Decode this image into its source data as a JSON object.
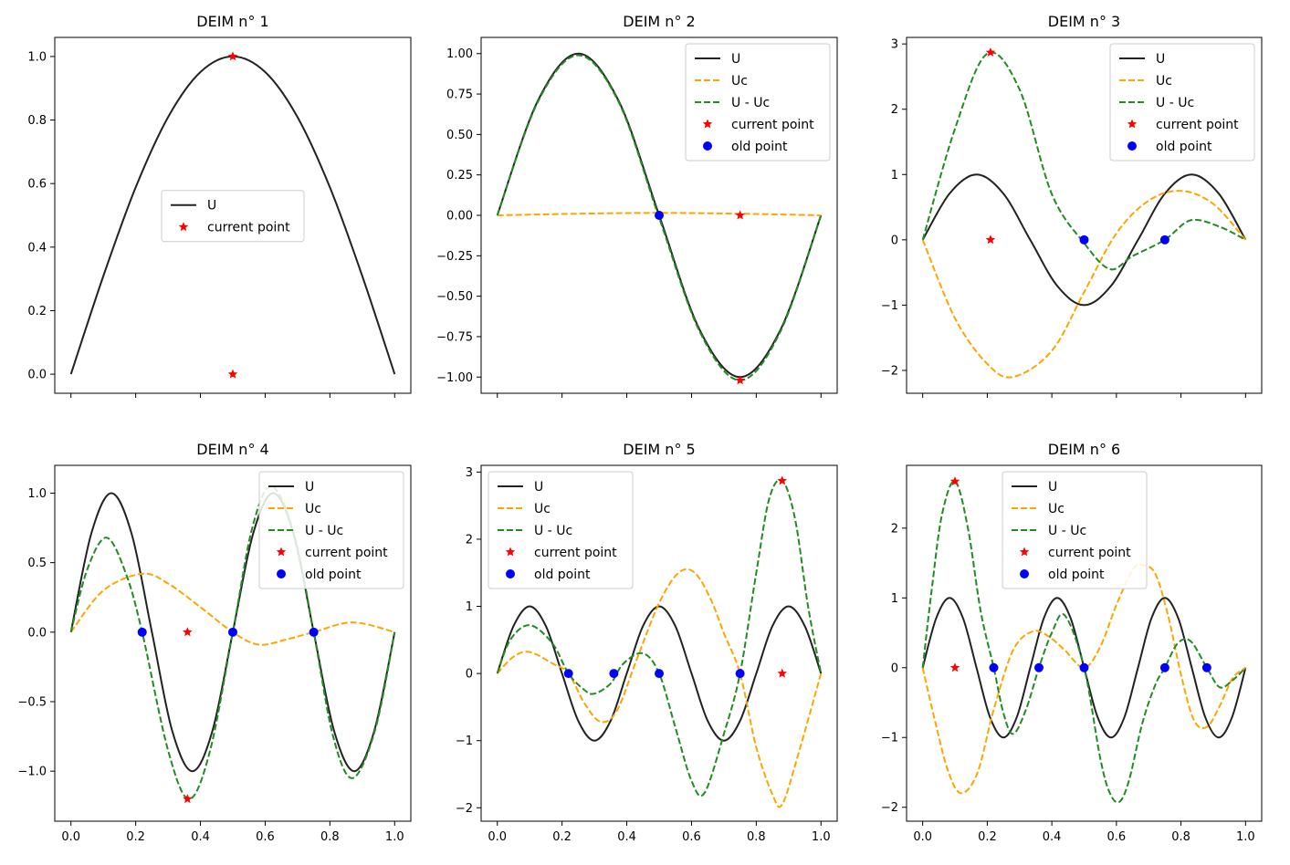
{
  "colors": {
    "U": "#222222",
    "Uc": "#ffa500",
    "diff": "#228b22",
    "current": "#ff0000",
    "old": "#0000ff",
    "axes": "#000000",
    "background": "#ffffff"
  },
  "chart_data": [
    {
      "type": "line",
      "title": "DEIM n° 1",
      "k": 1,
      "xlim": [
        -0.05,
        1.05
      ],
      "ylim": [
        -0.06,
        1.06
      ],
      "xticks": [
        0,
        0.2,
        0.4,
        0.6,
        0.8,
        1.0
      ],
      "xticklabels": [
        "",
        "",
        "",
        "",
        "",
        ""
      ],
      "yticks": [
        0,
        0.2,
        0.4,
        0.6,
        0.8,
        1.0
      ],
      "yticklabels": [
        "0.0",
        "0.2",
        "0.4",
        "0.6",
        "0.8",
        "1.0"
      ],
      "legend": {
        "entries": [
          "U",
          "current point"
        ],
        "placement": "center"
      },
      "series": [
        {
          "name": "U",
          "style": "solid",
          "x": [
            0,
            0.1,
            0.2,
            0.3,
            0.4,
            0.5,
            0.6,
            0.7,
            0.8,
            0.9,
            1.0
          ],
          "y": [
            0,
            0.309,
            0.588,
            0.809,
            0.951,
            1.0,
            0.951,
            0.809,
            0.588,
            0.309,
            0
          ]
        }
      ],
      "current_point": [
        [
          0.5,
          1.0
        ],
        [
          0.5,
          0.0
        ]
      ],
      "old_points": []
    },
    {
      "type": "line",
      "title": "DEIM n° 2",
      "k": 2,
      "xlim": [
        -0.05,
        1.05
      ],
      "ylim": [
        -1.1,
        1.1
      ],
      "xticks": [
        0,
        0.2,
        0.4,
        0.6,
        0.8,
        1.0
      ],
      "xticklabels": [
        "",
        "",
        "",
        "",
        "",
        ""
      ],
      "yticks": [
        -1.0,
        -0.75,
        -0.5,
        -0.25,
        0,
        0.25,
        0.5,
        0.75,
        1.0
      ],
      "yticklabels": [
        "−1.00",
        "−0.75",
        "−0.50",
        "−0.25",
        "0.00",
        "0.25",
        "0.50",
        "0.75",
        "1.00"
      ],
      "legend": {
        "entries": [
          "U",
          "Uc",
          "U - Uc",
          "current point",
          "old point"
        ],
        "placement": "upper right"
      },
      "series": [
        {
          "name": "U",
          "style": "solid",
          "x": [
            0,
            0.125,
            0.25,
            0.375,
            0.5,
            0.625,
            0.75,
            0.875,
            1.0
          ],
          "y": [
            0,
            0.707,
            1.0,
            0.707,
            0,
            -0.707,
            -1.0,
            -0.707,
            0
          ]
        },
        {
          "name": "Uc",
          "style": "dashed",
          "x": [
            0,
            0.25,
            0.5,
            0.75,
            1.0
          ],
          "y": [
            0,
            0.01,
            0.015,
            0.01,
            0
          ]
        },
        {
          "name": "U - Uc",
          "style": "dashed",
          "x": [
            0,
            0.125,
            0.25,
            0.375,
            0.5,
            0.625,
            0.75,
            0.875,
            1.0
          ],
          "y": [
            0,
            0.7,
            0.99,
            0.7,
            -0.015,
            -0.717,
            -1.02,
            -0.716,
            0
          ]
        }
      ],
      "current_point": [
        [
          0.75,
          -1.02
        ],
        [
          0.75,
          0.0
        ]
      ],
      "old_points": [
        [
          0.5,
          0.0
        ]
      ]
    },
    {
      "type": "line",
      "title": "DEIM n° 3",
      "k": 3,
      "xlim": [
        -0.05,
        1.05
      ],
      "ylim": [
        -2.35,
        3.1
      ],
      "xticks": [
        0,
        0.2,
        0.4,
        0.6,
        0.8,
        1.0
      ],
      "xticklabels": [
        "",
        "",
        "",
        "",
        "",
        ""
      ],
      "yticks": [
        -2,
        -1,
        0,
        1,
        2,
        3
      ],
      "yticklabels": [
        "−2",
        "−1",
        "0",
        "1",
        "2",
        "3"
      ],
      "legend": {
        "entries": [
          "U",
          "Uc",
          "U - Uc",
          "current point",
          "old point"
        ],
        "placement": "upper right"
      },
      "series": [
        {
          "name": "U",
          "style": "solid",
          "x": [
            0,
            0.083,
            0.167,
            0.25,
            0.333,
            0.417,
            0.5,
            0.583,
            0.667,
            0.75,
            0.833,
            0.917,
            1.0
          ],
          "y": [
            0,
            0.707,
            1.0,
            0.707,
            0,
            -0.707,
            -1.0,
            -0.707,
            0,
            0.707,
            1.0,
            0.707,
            0
          ]
        },
        {
          "name": "Uc",
          "style": "dashed",
          "x": [
            0,
            0.1,
            0.2,
            0.28,
            0.4,
            0.5,
            0.6,
            0.7,
            0.8,
            0.9,
            1.0
          ],
          "y": [
            0,
            -1.2,
            -1.9,
            -2.1,
            -1.7,
            -0.8,
            0.1,
            0.6,
            0.75,
            0.55,
            0
          ]
        },
        {
          "name": "U - Uc",
          "style": "dashed",
          "x": [
            0,
            0.1,
            0.2,
            0.3,
            0.4,
            0.5,
            0.58,
            0.65,
            0.75,
            0.83,
            0.92,
            1.0
          ],
          "y": [
            0,
            1.7,
            2.85,
            2.3,
            0.7,
            -0.05,
            -0.45,
            -0.25,
            0.0,
            0.3,
            0.2,
            0
          ]
        }
      ],
      "current_point": [
        [
          0.21,
          2.87
        ],
        [
          0.21,
          0.0
        ]
      ],
      "old_points": [
        [
          0.5,
          0.0
        ],
        [
          0.75,
          0.0
        ]
      ]
    },
    {
      "type": "line",
      "title": "DEIM n° 4",
      "k": 4,
      "xlim": [
        -0.05,
        1.05
      ],
      "ylim": [
        -1.36,
        1.2
      ],
      "xticks": [
        0,
        0.2,
        0.4,
        0.6,
        0.8,
        1.0
      ],
      "xticklabels": [
        "0.0",
        "0.2",
        "0.4",
        "0.6",
        "0.8",
        "1.0"
      ],
      "yticks": [
        -1.0,
        -0.5,
        0,
        0.5,
        1.0
      ],
      "yticklabels": [
        "−1.0",
        "−0.5",
        "0.0",
        "0.5",
        "1.0"
      ],
      "legend": {
        "entries": [
          "U",
          "Uc",
          "U - Uc",
          "current point",
          "old point"
        ],
        "placement": "upper right"
      },
      "series": [
        {
          "name": "U",
          "style": "solid",
          "x": [
            0,
            0.0625,
            0.125,
            0.1875,
            0.25,
            0.3125,
            0.375,
            0.4375,
            0.5,
            0.5625,
            0.625,
            0.6875,
            0.75,
            0.8125,
            0.875,
            0.9375,
            1.0
          ],
          "y": [
            0,
            0.707,
            1.0,
            0.707,
            0,
            -0.707,
            -1.0,
            -0.707,
            0,
            0.707,
            1.0,
            0.707,
            0,
            -0.707,
            -1.0,
            -0.707,
            0
          ]
        },
        {
          "name": "Uc",
          "style": "dashed",
          "x": [
            0,
            0.1,
            0.22,
            0.3,
            0.4,
            0.5,
            0.58,
            0.67,
            0.75,
            0.87,
            1.0
          ],
          "y": [
            0,
            0.3,
            0.42,
            0.35,
            0.18,
            0.0,
            -0.09,
            -0.05,
            0.0,
            0.07,
            0
          ]
        },
        {
          "name": "U - Uc",
          "style": "dashed",
          "x": [
            0,
            0.05,
            0.11,
            0.17,
            0.22,
            0.3,
            0.365,
            0.43,
            0.5,
            0.56,
            0.62,
            0.69,
            0.75,
            0.81,
            0.87,
            0.94,
            1.0
          ],
          "y": [
            0,
            0.45,
            0.68,
            0.42,
            0,
            -0.85,
            -1.2,
            -0.85,
            0,
            0.75,
            1.05,
            0.7,
            0,
            -0.75,
            -1.05,
            -0.7,
            0
          ]
        }
      ],
      "current_point": [
        [
          0.36,
          -1.2
        ],
        [
          0.36,
          0.0
        ]
      ],
      "old_points": [
        [
          0.22,
          0.0
        ],
        [
          0.5,
          0.0
        ],
        [
          0.75,
          0.0
        ]
      ]
    },
    {
      "type": "line",
      "title": "DEIM n° 5",
      "k": 5,
      "xlim": [
        -0.05,
        1.05
      ],
      "ylim": [
        -2.2,
        3.1
      ],
      "xticks": [
        0,
        0.2,
        0.4,
        0.6,
        0.8,
        1.0
      ],
      "xticklabels": [
        "0.0",
        "0.2",
        "0.4",
        "0.6",
        "0.8",
        "1.0"
      ],
      "yticks": [
        -2,
        -1,
        0,
        1,
        2,
        3
      ],
      "yticklabels": [
        "−2",
        "−1",
        "0",
        "1",
        "2",
        "3"
      ],
      "legend": {
        "entries": [
          "U",
          "Uc",
          "U - Uc",
          "current point",
          "old point"
        ],
        "placement": "upper left"
      },
      "series": [
        {
          "name": "U",
          "style": "solid",
          "x": [
            0,
            0.05,
            0.1,
            0.15,
            0.2,
            0.25,
            0.3,
            0.35,
            0.4,
            0.45,
            0.5,
            0.55,
            0.6,
            0.65,
            0.7,
            0.75,
            0.8,
            0.85,
            0.9,
            0.95,
            1.0
          ],
          "y": [
            0,
            0.707,
            1.0,
            0.707,
            0,
            -0.707,
            -1.0,
            -0.707,
            0,
            0.707,
            1.0,
            0.707,
            0,
            -0.707,
            -1.0,
            -0.707,
            0,
            0.707,
            1.0,
            0.707,
            0
          ]
        },
        {
          "name": "Uc",
          "style": "dashed",
          "x": [
            0,
            0.05,
            0.1,
            0.17,
            0.22,
            0.27,
            0.32,
            0.37,
            0.43,
            0.5,
            0.56,
            0.61,
            0.66,
            0.7,
            0.75,
            0.8,
            0.85,
            0.88,
            0.93,
            1.0
          ],
          "y": [
            0,
            0.25,
            0.32,
            0.15,
            0.0,
            -0.45,
            -0.72,
            -0.55,
            0.2,
            1.05,
            1.5,
            1.5,
            1.1,
            0.6,
            0.0,
            -1.1,
            -1.8,
            -1.95,
            -1.2,
            0
          ]
        },
        {
          "name": "U - Uc",
          "style": "dashed",
          "x": [
            0,
            0.04,
            0.1,
            0.17,
            0.22,
            0.27,
            0.3,
            0.35,
            0.39,
            0.45,
            0.5,
            0.55,
            0.6,
            0.64,
            0.7,
            0.75,
            0.8,
            0.84,
            0.88,
            0.92,
            0.96,
            1.0
          ],
          "y": [
            0,
            0.5,
            0.72,
            0.45,
            0.0,
            -0.25,
            -0.3,
            -0.15,
            0.15,
            0.3,
            0.0,
            -0.8,
            -1.6,
            -1.78,
            -0.9,
            0.0,
            1.5,
            2.6,
            2.87,
            2.3,
            1.0,
            0
          ]
        }
      ],
      "current_point": [
        [
          0.88,
          2.87
        ],
        [
          0.88,
          0.0
        ]
      ],
      "old_points": [
        [
          0.22,
          0.0
        ],
        [
          0.36,
          0.0
        ],
        [
          0.5,
          0.0
        ],
        [
          0.75,
          0.0
        ]
      ]
    },
    {
      "type": "line",
      "title": "DEIM n° 6",
      "k": 6,
      "xlim": [
        -0.05,
        1.05
      ],
      "ylim": [
        -2.2,
        2.9
      ],
      "xticks": [
        0,
        0.2,
        0.4,
        0.6,
        0.8,
        1.0
      ],
      "xticklabels": [
        "0.0",
        "0.2",
        "0.4",
        "0.6",
        "0.8",
        "1.0"
      ],
      "yticks": [
        -2,
        -1,
        0,
        1,
        2
      ],
      "yticklabels": [
        "−2",
        "−1",
        "0",
        "1",
        "2"
      ],
      "legend": {
        "entries": [
          "U",
          "Uc",
          "U - Uc",
          "current point",
          "old point"
        ],
        "placement": "upper center"
      },
      "series": [
        {
          "name": "U",
          "style": "solid",
          "x": [
            0,
            0.0417,
            0.0833,
            0.125,
            0.1667,
            0.2083,
            0.25,
            0.2917,
            0.3333,
            0.375,
            0.4167,
            0.4583,
            0.5,
            0.5417,
            0.5833,
            0.625,
            0.6667,
            0.7083,
            0.75,
            0.7917,
            0.8333,
            0.875,
            0.9167,
            0.9583,
            1.0
          ],
          "y": [
            0,
            0.707,
            1.0,
            0.707,
            0,
            -0.707,
            -1.0,
            -0.707,
            0,
            0.707,
            1.0,
            0.707,
            0,
            -0.707,
            -1.0,
            -0.707,
            0,
            0.707,
            1.0,
            0.707,
            0,
            -0.707,
            -1.0,
            -0.707,
            0
          ]
        },
        {
          "name": "Uc",
          "style": "dashed",
          "x": [
            0,
            0.04,
            0.08,
            0.12,
            0.17,
            0.22,
            0.28,
            0.34,
            0.39,
            0.44,
            0.5,
            0.55,
            0.6,
            0.65,
            0.68,
            0.72,
            0.76,
            0.8,
            0.84,
            0.88,
            0.92,
            0.96,
            1.0
          ],
          "y": [
            0,
            -0.8,
            -1.5,
            -1.8,
            -1.5,
            -0.6,
            0.25,
            0.52,
            0.45,
            0.25,
            0.0,
            0.3,
            0.9,
            1.4,
            1.47,
            1.35,
            0.75,
            -0.1,
            -0.75,
            -0.85,
            -0.55,
            -0.15,
            0
          ]
        },
        {
          "name": "U - Uc",
          "style": "dashed",
          "x": [
            0,
            0.03,
            0.06,
            0.1,
            0.14,
            0.18,
            0.22,
            0.25,
            0.28,
            0.32,
            0.36,
            0.4,
            0.44,
            0.5,
            0.55,
            0.58,
            0.61,
            0.64,
            0.68,
            0.72,
            0.75,
            0.79,
            0.83,
            0.88,
            0.92,
            0.96,
            1.0
          ],
          "y": [
            0,
            1.2,
            2.2,
            2.67,
            2.0,
            0.8,
            0.0,
            -0.65,
            -0.95,
            -0.6,
            0.0,
            0.5,
            0.75,
            0.0,
            -1.3,
            -1.8,
            -1.92,
            -1.6,
            -0.8,
            -0.25,
            0.0,
            0.35,
            0.38,
            0.0,
            -0.28,
            -0.18,
            0
          ]
        }
      ],
      "current_point": [
        [
          0.1,
          2.67
        ],
        [
          0.1,
          0.0
        ]
      ],
      "old_points": [
        [
          0.22,
          0.0
        ],
        [
          0.36,
          0.0
        ],
        [
          0.5,
          0.0
        ],
        [
          0.75,
          0.0
        ],
        [
          0.88,
          0.0
        ]
      ]
    }
  ]
}
